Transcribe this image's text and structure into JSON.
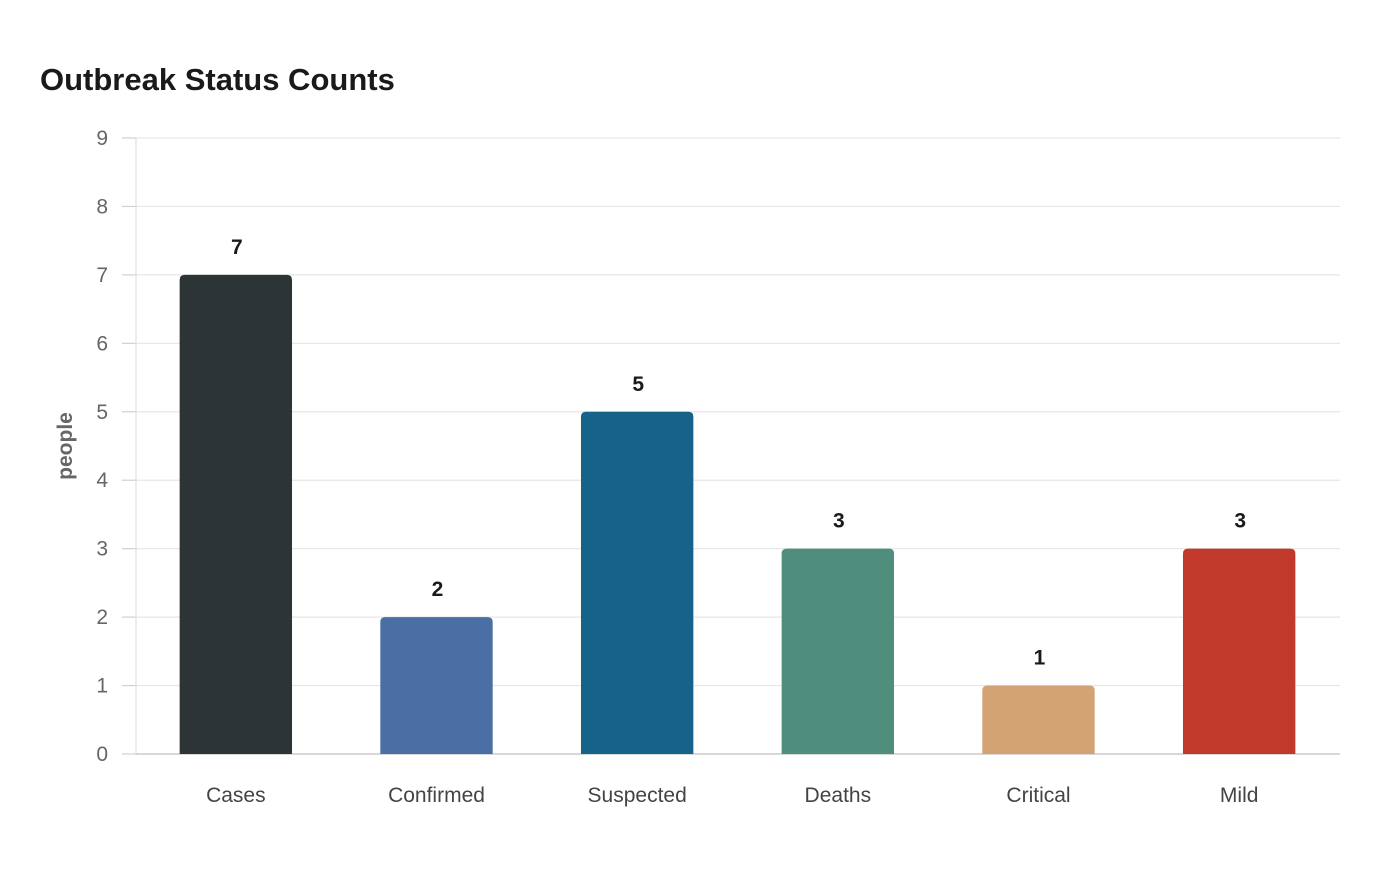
{
  "chart_data": {
    "type": "bar",
    "title": "Outbreak Status Counts",
    "xlabel": "",
    "ylabel": "people",
    "ylim": [
      0,
      9
    ],
    "yticks": [
      0,
      1,
      2,
      3,
      4,
      5,
      6,
      7,
      8,
      9
    ],
    "categories": [
      "Cases",
      "Confirmed",
      "Suspected",
      "Deaths",
      "Critical",
      "Mild"
    ],
    "values": [
      7,
      2,
      5,
      3,
      1,
      3
    ],
    "colors": [
      "#2d3436",
      "#4a6fa5",
      "#176289",
      "#4f8d7c",
      "#d4a373",
      "#c0392b"
    ],
    "data_labels": [
      "7",
      "2",
      "5",
      "3",
      "1",
      "3"
    ],
    "grid": true,
    "legend": "none"
  }
}
